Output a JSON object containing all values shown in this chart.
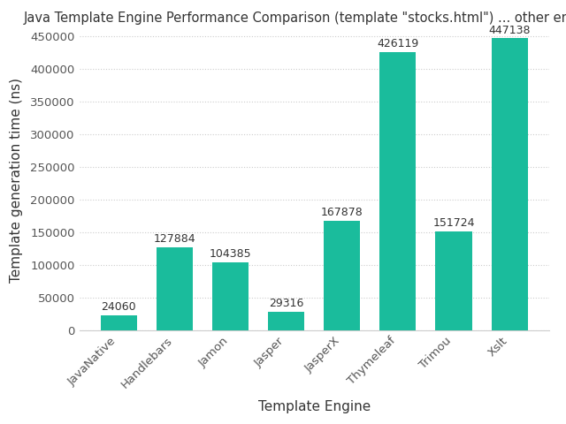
{
  "title": "Java Template Engine Performance Comparison (template \"stocks.html\") ... other engines",
  "xlabel": "Template Engine",
  "ylabel": "Template generation time (ns)",
  "categories": [
    "JavaNative",
    "Handlebars",
    "Jamon",
    "Jasper",
    "JasperX",
    "Thymeleaf",
    "Trimou",
    "Xslt"
  ],
  "values": [
    24060,
    127884,
    104385,
    29316,
    167878,
    426119,
    151724,
    447138
  ],
  "bar_color": "#1abc9c",
  "background_color": "#ffffff",
  "plot_bg_color": "#ffffff",
  "ylim": [
    0,
    460000
  ],
  "yticks": [
    0,
    50000,
    100000,
    150000,
    200000,
    250000,
    300000,
    350000,
    400000,
    450000
  ],
  "title_fontsize": 10.5,
  "label_fontsize": 11,
  "tick_fontsize": 9.5,
  "value_fontsize": 9
}
